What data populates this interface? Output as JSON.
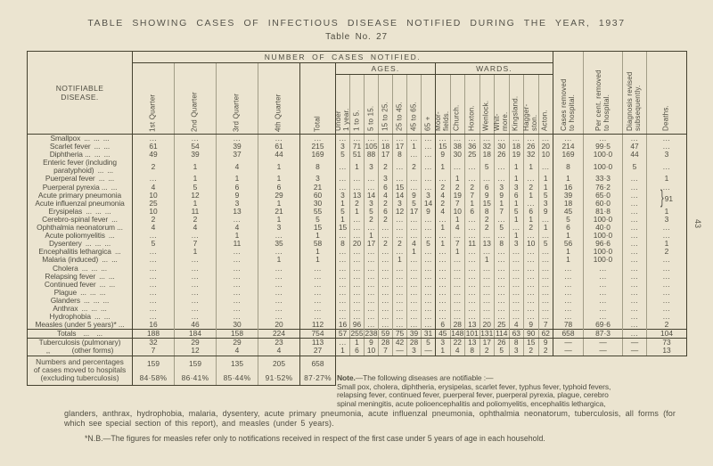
{
  "page": {
    "title": "TABLE SHOWING CASES OF INFECTIOUS DISEASE NOTIFIED DURING THE YEAR, 1937",
    "subtitle": "Table No. 27",
    "page_number": "43"
  },
  "colors": {
    "paper": "#ebe4d0",
    "ink": "#4f4d41",
    "rule_dark": "#44412f",
    "rule_light": "#a29d87"
  },
  "table": {
    "corner_header": "NOTIFIABLE\nDISEASE.",
    "group_header": "NUMBER OF CASES NOTIFIED.",
    "quarter_headers": [
      "1st Quarter",
      "2nd Quarter",
      "3rd Quarter",
      "4th Quarter"
    ],
    "total_header": "Total",
    "ages_group": "AGES.",
    "age_headers": [
      "Under\n1 year.",
      "1 to 5.",
      "5 to 15.",
      "15 to 25.",
      "25 to 45.",
      "45 to 65.",
      "65 +"
    ],
    "wards_group": "WARDS.",
    "ward_headers": [
      "Moor-\nfields.",
      "Church.",
      "Hoxton.",
      "Wenlock.",
      "Whit-\nmore.",
      "Kingsland.",
      "Hagger-\nston.",
      "Acton."
    ],
    "right_headers": [
      "Cases removed\nto hospital.",
      "Per cent. removed\nto hospital.",
      "Diagnosis revised\nsubsequently.",
      "Deaths."
    ],
    "rows": [
      {
        "label": "Smallpox ... ... ...",
        "cells": [
          "...",
          "...",
          "...",
          "...",
          "...",
          "...",
          "...",
          "...",
          "...",
          "...",
          "...",
          "...",
          "...",
          "...",
          "...",
          "...",
          "...",
          "...",
          "...",
          "...",
          "...",
          "...",
          "..."
        ],
        "deaths": "..."
      },
      {
        "label": "Scarlet fever ... ...",
        "cells": [
          "61",
          "54",
          "39",
          "61",
          "215",
          "3",
          "71",
          "105",
          "18",
          "17",
          "1",
          "...",
          "15",
          "38",
          "36",
          "32",
          "30",
          "18",
          "26",
          "20",
          "214",
          "99·5",
          "47"
        ],
        "deaths": "..."
      },
      {
        "label": "Diphtheria ... ... ...",
        "cells": [
          "49",
          "39",
          "37",
          "44",
          "169",
          "5",
          "51",
          "88",
          "17",
          "8",
          "...",
          "...",
          "9",
          "30",
          "25",
          "18",
          "26",
          "19",
          "32",
          "10",
          "169",
          "100·0",
          "44"
        ],
        "deaths": "3"
      },
      {
        "label": "Enteric fever (including\n  paratyphoid) ... ...",
        "cells": [
          "2",
          "1",
          "4",
          "1",
          "8",
          "...",
          "1",
          "3",
          "2",
          "...",
          "2",
          "...",
          "1",
          "...",
          "...",
          "5",
          "...",
          "1",
          "1",
          "...",
          "8",
          "100·0",
          "5"
        ],
        "deaths": "..."
      },
      {
        "label": "Puerperal fever ... ...",
        "cells": [
          "...",
          "1",
          "1",
          "1",
          "3",
          "...",
          "...",
          "...",
          "3",
          "...",
          "...",
          "...",
          "...",
          "1",
          "...",
          "...",
          "...",
          "1",
          "...",
          "1",
          "1",
          "33·3",
          "..."
        ],
        "deaths": "1"
      },
      {
        "label": "Puerperal pyrexia ... ...",
        "cells": [
          "4",
          "5",
          "6",
          "6",
          "21",
          "...",
          "...",
          "...",
          "6",
          "15",
          "...",
          "...",
          "2",
          "2",
          "2",
          "6",
          "3",
          "3",
          "2",
          "1",
          "16",
          "76·2",
          "..."
        ],
        "deaths": "..."
      },
      {
        "label": "Acute primary pneumonia",
        "cells": [
          "10",
          "12",
          "9",
          "29",
          "60",
          "3",
          "13",
          "14",
          "4",
          "14",
          "9",
          "3",
          "4",
          "19",
          "7",
          "9",
          "9",
          "6",
          "1",
          "5",
          "39",
          "65·0",
          "..."
        ],
        "deaths": "91",
        "deaths_brace": true
      },
      {
        "label": "Acute influenzal pneumonia",
        "cells": [
          "25",
          "1",
          "3",
          "1",
          "30",
          "1",
          "2",
          "3",
          "2",
          "3",
          "5",
          "14",
          "2",
          "7",
          "1",
          "15",
          "1",
          "1",
          "...",
          "3",
          "18",
          "60·0",
          "..."
        ],
        "deaths_skip": true
      },
      {
        "label": "Erysipelas ... ... ...",
        "cells": [
          "10",
          "11",
          "13",
          "21",
          "55",
          "5",
          "1",
          "5",
          "6",
          "12",
          "17",
          "9",
          "4",
          "10",
          "6",
          "8",
          "7",
          "5",
          "6",
          "9",
          "45",
          "81·8",
          "..."
        ],
        "deaths": "1"
      },
      {
        "label": "Cerebro-spinal fever ...",
        "cells": [
          "2",
          "2",
          "...",
          "1",
          "5",
          "1",
          "...",
          "2",
          "2",
          "...",
          "...",
          "...",
          "...",
          "1",
          "...",
          "2",
          "...",
          "1",
          "1",
          "...",
          "5",
          "100·0",
          "..."
        ],
        "deaths": "3"
      },
      {
        "label": "Ophthalmia neonatorum ...",
        "cells": [
          "4",
          "4",
          "4",
          "3",
          "15",
          "15",
          "...",
          "...",
          "...",
          "...",
          "...",
          "...",
          "1",
          "4",
          "...",
          "2",
          "5",
          "...",
          "2",
          "1",
          "6",
          "40·0",
          "..."
        ],
        "deaths": "..."
      },
      {
        "label": "Acute poliomyelitis ...",
        "cells": [
          "...",
          "...",
          "1",
          "...",
          "1",
          "...",
          "...",
          "1",
          "...",
          "...",
          "...",
          "...",
          "...",
          "...",
          "...",
          "...",
          "...",
          "1",
          "...",
          "...",
          "1",
          "100·0",
          "..."
        ],
        "deaths": "..."
      },
      {
        "label": "Dysentery ... ... ...",
        "cells": [
          "5",
          "7",
          "11",
          "35",
          "58",
          "8",
          "20",
          "17",
          "2",
          "2",
          "4",
          "5",
          "1",
          "7",
          "11",
          "13",
          "8",
          "3",
          "10",
          "5",
          "56",
          "96·6",
          "..."
        ],
        "deaths": "1"
      },
      {
        "label": "Encephalitis lethargica ...",
        "cells": [
          "...",
          "1",
          "...",
          "...",
          "1",
          "...",
          "...",
          "...",
          "...",
          "...",
          "1",
          "...",
          "...",
          "1",
          "...",
          "...",
          "...",
          "...",
          "...",
          "...",
          "1",
          "100·0",
          "..."
        ],
        "deaths": "2"
      },
      {
        "label": "Malaria (induced) ... ...",
        "cells": [
          "...",
          "...",
          "...",
          "1",
          "1",
          "...",
          "...",
          "...",
          "...",
          "1",
          "...",
          "...",
          "...",
          "...",
          "...",
          "1",
          "...",
          "...",
          "...",
          "...",
          "1",
          "100·0",
          "..."
        ],
        "deaths": "..."
      },
      {
        "label": "Cholera ... ... ...",
        "cells": [
          "...",
          "...",
          "...",
          "...",
          "...",
          "...",
          "...",
          "...",
          "...",
          "...",
          "...",
          "...",
          "...",
          "...",
          "...",
          "...",
          "...",
          "...",
          "...",
          "...",
          "...",
          "...",
          "..."
        ],
        "deaths": "..."
      },
      {
        "label": "Relapsing fever ... ...",
        "cells": [
          "...",
          "...",
          "...",
          "...",
          "...",
          "...",
          "...",
          "...",
          "...",
          "...",
          "...",
          "...",
          "...",
          "...",
          "...",
          "...",
          "...",
          "...",
          "...",
          "...",
          "...",
          "...",
          "..."
        ],
        "deaths": "..."
      },
      {
        "label": "Continued fever ... ...",
        "cells": [
          "...",
          "...",
          "...",
          "...",
          "...",
          "...",
          "...",
          "...",
          "...",
          "...",
          "...",
          "...",
          "...",
          "...",
          "...",
          "...",
          "...",
          "...",
          "...",
          "...",
          "...",
          "...",
          "..."
        ],
        "deaths": "..."
      },
      {
        "label": "Plague ... ... ...",
        "cells": [
          "...",
          "...",
          "...",
          "...",
          "...",
          "...",
          "...",
          "...",
          "...",
          "...",
          "...",
          "...",
          "...",
          "...",
          "...",
          "...",
          "...",
          "...",
          "...",
          "...",
          "...",
          "...",
          "..."
        ],
        "deaths": "..."
      },
      {
        "label": "Glanders ... ... ...",
        "cells": [
          "...",
          "...",
          "...",
          "...",
          "...",
          "...",
          "...",
          "...",
          "...",
          "...",
          "...",
          "...",
          "...",
          "...",
          "...",
          "...",
          "...",
          "...",
          "...",
          "...",
          "...",
          "...",
          "..."
        ],
        "deaths": "..."
      },
      {
        "label": "Anthrax ... ... ...",
        "cells": [
          "...",
          "...",
          "...",
          "...",
          "...",
          "...",
          "...",
          "...",
          "...",
          "...",
          "...",
          "...",
          "...",
          "...",
          "...",
          "...",
          "...",
          "...",
          "...",
          "...",
          "...",
          "...",
          "..."
        ],
        "deaths": "..."
      },
      {
        "label": "Hydrophobia ... ...",
        "cells": [
          "...",
          "...",
          "...",
          "...",
          "...",
          "...",
          "...",
          "...",
          "...",
          "...",
          "...",
          "...",
          "...",
          "...",
          "...",
          "...",
          "...",
          "...",
          "...",
          "...",
          "...",
          "...",
          "..."
        ],
        "deaths": "..."
      },
      {
        "label": "Measles (under 5 years)* ...",
        "cells": [
          "16",
          "46",
          "30",
          "20",
          "112",
          "16",
          "96",
          "...",
          "...",
          "...",
          "...",
          "...",
          "6",
          "28",
          "13",
          "20",
          "25",
          "4",
          "9",
          "7",
          "78",
          "69·6",
          "..."
        ],
        "deaths": "2"
      }
    ],
    "totals": {
      "label": "Totals  ...  ...",
      "cells": [
        "188",
        "184",
        "158",
        "224",
        "754",
        "57",
        "255",
        "238",
        "59",
        "75",
        "39",
        "31",
        "45",
        "148",
        "101",
        "131",
        "114",
        "63",
        "90",
        "62",
        "658",
        "87·3",
        "..."
      ],
      "deaths": "104"
    },
    "tb_rows": [
      {
        "label": "Tuberculosis (pulmonary)",
        "cells": [
          "32",
          "29",
          "29",
          "23",
          "113",
          "...",
          "1",
          "9",
          "28",
          "42",
          "28",
          "5",
          "3",
          "22",
          "13",
          "17",
          "26",
          "8",
          "15",
          "9",
          "—",
          "—",
          "—"
        ],
        "deaths": "73"
      },
      {
        "label": ",,      (other forms)",
        "cells": [
          "7",
          "12",
          "4",
          "4",
          "27",
          "1",
          "6",
          "10",
          "7",
          "—",
          "3",
          "—",
          "1",
          "4",
          "8",
          "2",
          "5",
          "3",
          "2",
          "2",
          "—",
          "—",
          "—"
        ],
        "deaths": "13"
      }
    ],
    "numbers_row": {
      "label": "Numbers and percentages\nof cases moved to hospitals\n(excluding tuberculosis)",
      "counts": [
        "159",
        "159",
        "135",
        "205",
        "658"
      ],
      "percents": [
        "84·58%",
        "86·41%",
        "85·44%",
        "91·52%",
        "87·27%"
      ]
    }
  },
  "note": {
    "label": "Note.",
    "line1_rest": "—The following diseases are notifiable :—",
    "lines": [
      "Small pox, cholera, diphtheria, erysipelas, scarlet fever, typhus fever, typhoid fevers,",
      "relapsing fever, continued fever, puerperal fever, puerperal pyrexia, plague, cerebro",
      "spinal meningitis, acute polioencephalitis and poliomyelitis, encephalitis lethargica,"
    ],
    "continuation": "glanders, anthrax, hydrophobia, malaria, dysentery, acute primary pneumonia, acute influenzal pneumonia, ophthalmia neonatorum, tuberculosis, all forms (for which see special section of this report), and measles (under 5 years).",
    "nb": "*N.B.—The figures for measles refer only to notifications received in respect of the first case under 5 years of age in each household."
  }
}
